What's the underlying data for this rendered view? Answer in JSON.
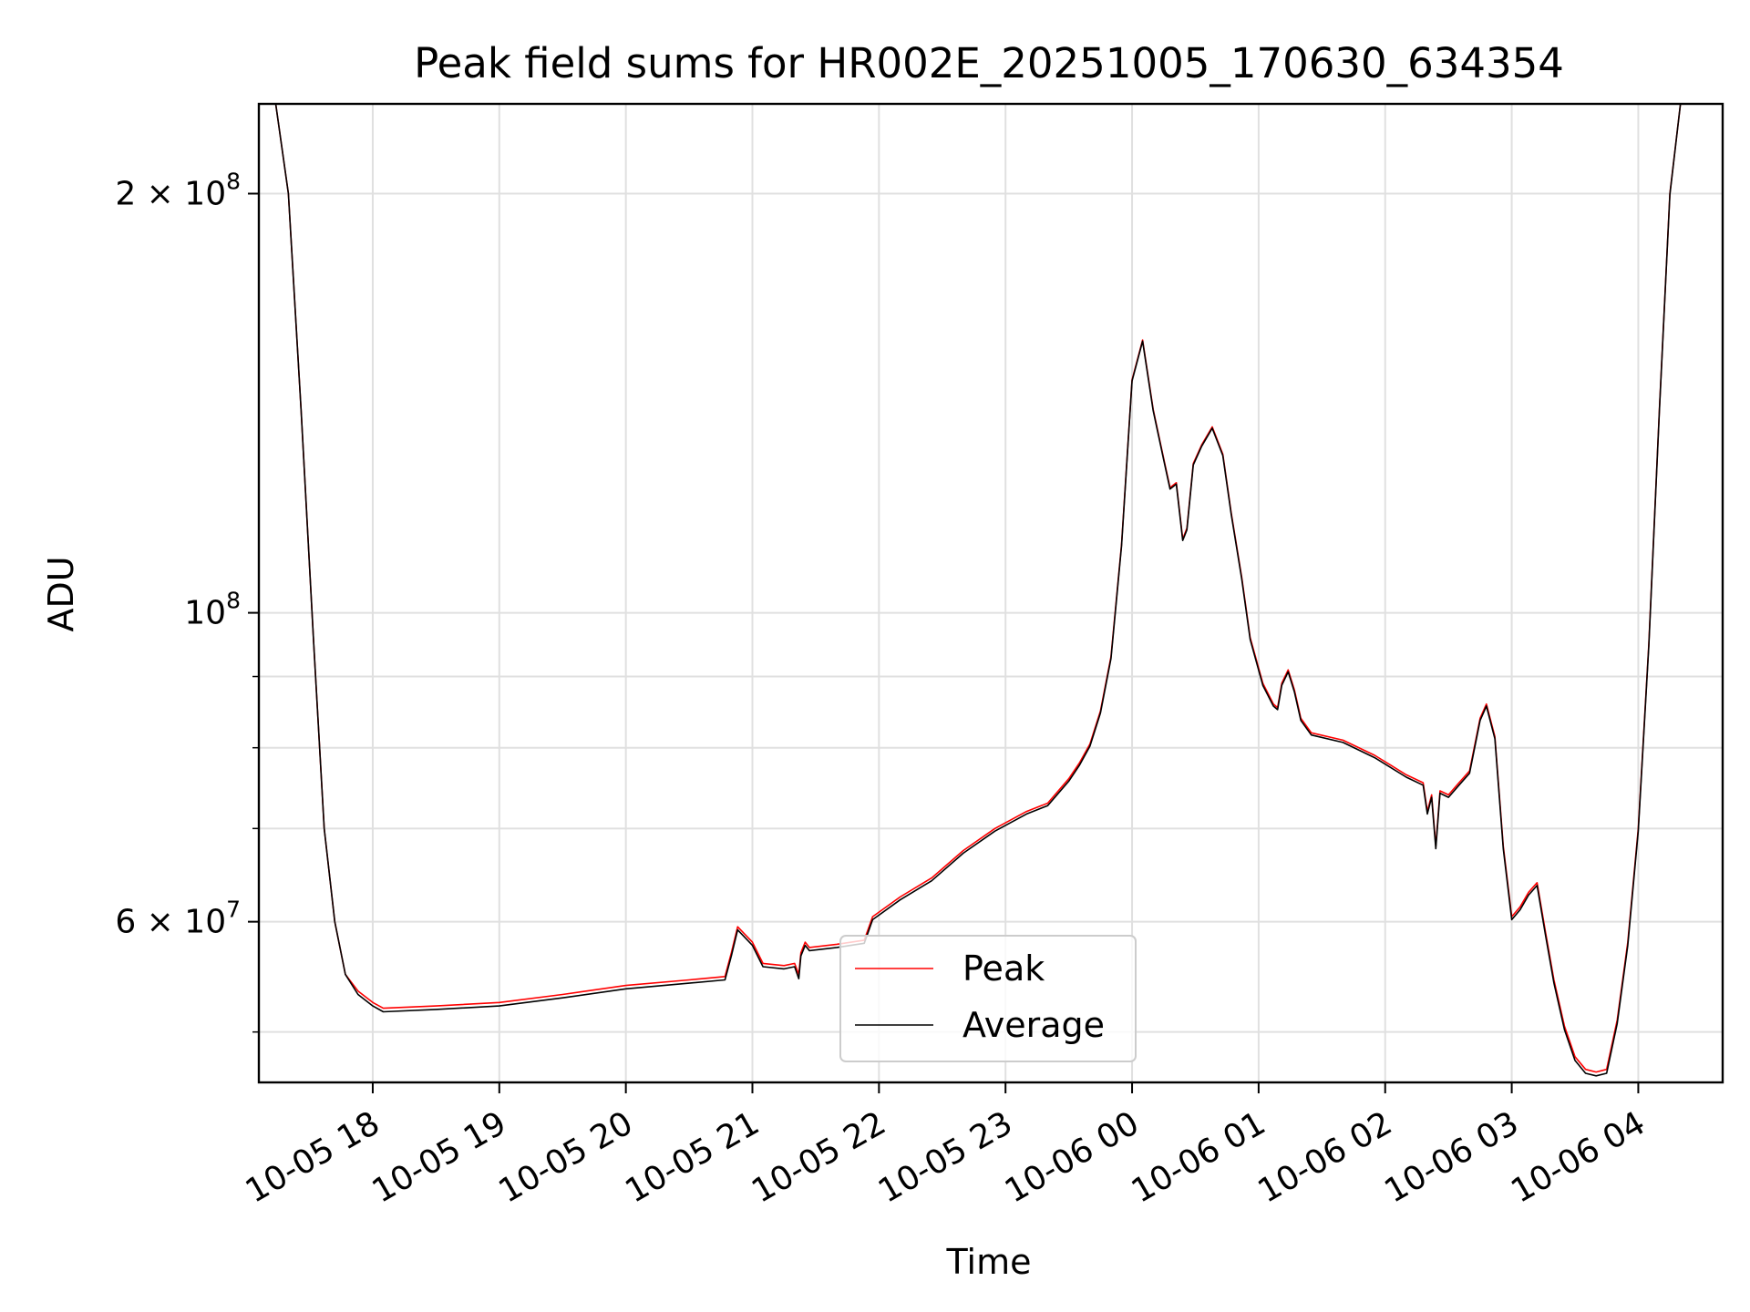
{
  "chart_data": {
    "type": "line",
    "title": "Peak field sums for HR002E_20251005_170630_634354",
    "xlabel": "Time",
    "ylabel": "ADU",
    "yscale": "log",
    "xlim": [
      "2025-10-05 17:06",
      "2025-10-06 04:40"
    ],
    "ylim": [
      46000000,
      232000000
    ],
    "grid": true,
    "legend_position": "lower center",
    "x_ticks": [
      {
        "time": "2025-10-05 18:00",
        "label": "10-05 18"
      },
      {
        "time": "2025-10-05 19:00",
        "label": "10-05 19"
      },
      {
        "time": "2025-10-05 20:00",
        "label": "10-05 20"
      },
      {
        "time": "2025-10-05 21:00",
        "label": "10-05 21"
      },
      {
        "time": "2025-10-05 22:00",
        "label": "10-05 22"
      },
      {
        "time": "2025-10-05 23:00",
        "label": "10-05 23"
      },
      {
        "time": "2025-10-06 00:00",
        "label": "10-06 00"
      },
      {
        "time": "2025-10-06 01:00",
        "label": "10-06 01"
      },
      {
        "time": "2025-10-06 02:00",
        "label": "10-06 02"
      },
      {
        "time": "2025-10-06 03:00",
        "label": "10-06 03"
      },
      {
        "time": "2025-10-06 04:00",
        "label": "10-06 04"
      }
    ],
    "y_major_ticks": [
      {
        "value": 200000000,
        "mantissa": "2 × 10",
        "exp": "8"
      },
      {
        "value": 100000000,
        "mantissa": "10",
        "exp": "8"
      },
      {
        "value": 60000000,
        "mantissa": "6 × 10",
        "exp": "7"
      }
    ],
    "y_minor_gridlines": [
      50000000,
      70000000,
      80000000,
      90000000
    ],
    "series": [
      {
        "name": "Peak",
        "color": "#ff0000",
        "x": [
          "2025-10-05 17:06",
          "2025-10-05 17:14",
          "2025-10-05 17:20",
          "2025-10-05 17:26",
          "2025-10-05 17:32",
          "2025-10-05 17:37",
          "2025-10-05 17:42",
          "2025-10-05 17:47",
          "2025-10-05 17:53",
          "2025-10-05 18:00",
          "2025-10-05 18:05",
          "2025-10-05 18:30",
          "2025-10-05 19:00",
          "2025-10-05 19:30",
          "2025-10-05 20:00",
          "2025-10-05 20:30",
          "2025-10-05 20:47",
          "2025-10-05 20:50",
          "2025-10-05 20:53",
          "2025-10-05 21:00",
          "2025-10-05 21:05",
          "2025-10-05 21:15",
          "2025-10-05 21:20",
          "2025-10-05 21:22",
          "2025-10-05 21:23",
          "2025-10-05 21:25",
          "2025-10-05 21:27",
          "2025-10-05 21:40",
          "2025-10-05 21:53",
          "2025-10-05 21:57",
          "2025-10-05 22:10",
          "2025-10-05 22:25",
          "2025-10-05 22:40",
          "2025-10-05 22:55",
          "2025-10-05 23:10",
          "2025-10-05 23:20",
          "2025-10-05 23:30",
          "2025-10-05 23:35",
          "2025-10-05 23:40",
          "2025-10-05 23:45",
          "2025-10-05 23:50",
          "2025-10-05 23:55",
          "2025-10-06 00:00",
          "2025-10-06 00:05",
          "2025-10-06 00:10",
          "2025-10-06 00:15",
          "2025-10-06 00:18",
          "2025-10-06 00:21",
          "2025-10-06 00:24",
          "2025-10-06 00:26",
          "2025-10-06 00:29",
          "2025-10-06 00:33",
          "2025-10-06 00:38",
          "2025-10-06 00:43",
          "2025-10-06 00:47",
          "2025-10-06 00:52",
          "2025-10-06 00:56",
          "2025-10-06 01:02",
          "2025-10-06 01:07",
          "2025-10-06 01:09",
          "2025-10-06 01:11",
          "2025-10-06 01:14",
          "2025-10-06 01:17",
          "2025-10-06 01:20",
          "2025-10-06 01:25",
          "2025-10-06 01:40",
          "2025-10-06 01:55",
          "2025-10-06 02:10",
          "2025-10-06 02:18",
          "2025-10-06 02:20",
          "2025-10-06 02:22",
          "2025-10-06 02:24",
          "2025-10-06 02:26",
          "2025-10-06 02:30",
          "2025-10-06 02:35",
          "2025-10-06 02:40",
          "2025-10-06 02:45",
          "2025-10-06 02:48",
          "2025-10-06 02:52",
          "2025-10-06 02:56",
          "2025-10-06 03:00",
          "2025-10-06 03:04",
          "2025-10-06 03:08",
          "2025-10-06 03:12",
          "2025-10-06 03:16",
          "2025-10-06 03:20",
          "2025-10-06 03:25",
          "2025-10-06 03:30",
          "2025-10-06 03:35",
          "2025-10-06 03:40",
          "2025-10-06 03:45",
          "2025-10-06 03:50",
          "2025-10-06 03:55",
          "2025-10-06 04:00",
          "2025-10-06 04:05",
          "2025-10-06 04:10",
          "2025-10-06 04:15",
          "2025-10-06 04:20",
          "2025-10-06 04:24",
          "2025-10-06 04:27",
          "2025-10-06 04:32",
          "2025-10-06 04:40"
        ],
        "y": [
          232000000,
          232000000,
          200000000,
          140000000,
          95000000,
          70000000,
          60000000,
          55000000,
          53500000,
          52500000,
          52000000,
          52200000,
          52500000,
          53200000,
          54000000,
          54500000,
          54800000,
          57000000,
          59500000,
          58000000,
          56000000,
          55800000,
          56000000,
          55000000,
          57000000,
          58000000,
          57500000,
          57800000,
          58200000,
          60500000,
          62500000,
          64500000,
          67500000,
          70000000,
          72000000,
          73000000,
          76000000,
          78000000,
          80500000,
          85000000,
          93000000,
          112000000,
          147000000,
          157000000,
          140000000,
          129000000,
          123000000,
          124000000,
          113000000,
          115000000,
          128000000,
          132000000,
          136000000,
          130000000,
          118000000,
          106000000,
          96000000,
          89000000,
          86000000,
          85500000,
          89000000,
          91000000,
          88000000,
          84000000,
          82000000,
          81000000,
          79000000,
          76500000,
          75500000,
          72000000,
          74000000,
          68000000,
          74500000,
          74000000,
          75500000,
          77000000,
          84000000,
          86000000,
          81500000,
          68000000,
          60500000,
          61500000,
          63000000,
          64000000,
          59000000,
          54500000,
          50500000,
          48000000,
          47000000,
          46800000,
          47000000,
          51000000,
          58000000,
          70000000,
          95000000,
          140000000,
          200000000,
          232000000,
          232000000,
          232000000,
          232000000,
          232000000
        ]
      },
      {
        "name": "Average",
        "color": "#000000",
        "x": [
          "2025-10-05 17:06",
          "2025-10-05 17:14",
          "2025-10-05 17:20",
          "2025-10-05 17:26",
          "2025-10-05 17:32",
          "2025-10-05 17:37",
          "2025-10-05 17:42",
          "2025-10-05 17:47",
          "2025-10-05 17:53",
          "2025-10-05 18:00",
          "2025-10-05 18:05",
          "2025-10-05 18:30",
          "2025-10-05 19:00",
          "2025-10-05 19:30",
          "2025-10-05 20:00",
          "2025-10-05 20:30",
          "2025-10-05 20:47",
          "2025-10-05 20:50",
          "2025-10-05 20:53",
          "2025-10-05 21:00",
          "2025-10-05 21:05",
          "2025-10-05 21:15",
          "2025-10-05 21:20",
          "2025-10-05 21:22",
          "2025-10-05 21:23",
          "2025-10-05 21:25",
          "2025-10-05 21:27",
          "2025-10-05 21:40",
          "2025-10-05 21:53",
          "2025-10-05 21:57",
          "2025-10-05 22:10",
          "2025-10-05 22:25",
          "2025-10-05 22:40",
          "2025-10-05 22:55",
          "2025-10-05 23:10",
          "2025-10-05 23:20",
          "2025-10-05 23:30",
          "2025-10-05 23:35",
          "2025-10-05 23:40",
          "2025-10-05 23:45",
          "2025-10-05 23:50",
          "2025-10-05 23:55",
          "2025-10-06 00:00",
          "2025-10-06 00:05",
          "2025-10-06 00:10",
          "2025-10-06 00:15",
          "2025-10-06 00:18",
          "2025-10-06 00:21",
          "2025-10-06 00:24",
          "2025-10-06 00:26",
          "2025-10-06 00:29",
          "2025-10-06 00:33",
          "2025-10-06 00:38",
          "2025-10-06 00:43",
          "2025-10-06 00:47",
          "2025-10-06 00:52",
          "2025-10-06 00:56",
          "2025-10-06 01:02",
          "2025-10-06 01:07",
          "2025-10-06 01:09",
          "2025-10-06 01:11",
          "2025-10-06 01:14",
          "2025-10-06 01:17",
          "2025-10-06 01:20",
          "2025-10-06 01:25",
          "2025-10-06 01:40",
          "2025-10-06 01:55",
          "2025-10-06 02:10",
          "2025-10-06 02:18",
          "2025-10-06 02:20",
          "2025-10-06 02:22",
          "2025-10-06 02:24",
          "2025-10-06 02:26",
          "2025-10-06 02:30",
          "2025-10-06 02:35",
          "2025-10-06 02:40",
          "2025-10-06 02:45",
          "2025-10-06 02:48",
          "2025-10-06 02:52",
          "2025-10-06 02:56",
          "2025-10-06 03:00",
          "2025-10-06 03:04",
          "2025-10-06 03:08",
          "2025-10-06 03:12",
          "2025-10-06 03:16",
          "2025-10-06 03:20",
          "2025-10-06 03:25",
          "2025-10-06 03:30",
          "2025-10-06 03:35",
          "2025-10-06 03:40",
          "2025-10-06 03:45",
          "2025-10-06 03:50",
          "2025-10-06 03:55",
          "2025-10-06 04:00",
          "2025-10-06 04:05",
          "2025-10-06 04:10",
          "2025-10-06 04:15",
          "2025-10-06 04:20",
          "2025-10-06 04:24",
          "2025-10-06 04:27",
          "2025-10-06 04:32",
          "2025-10-06 04:40"
        ],
        "y": [
          232000000,
          232000000,
          200000000,
          140000000,
          95000000,
          70000000,
          60000000,
          55000000,
          53200000,
          52200000,
          51700000,
          51900000,
          52200000,
          52900000,
          53700000,
          54200000,
          54500000,
          56700000,
          59200000,
          57700000,
          55700000,
          55500000,
          55700000,
          54600000,
          56700000,
          57700000,
          57200000,
          57500000,
          57900000,
          60200000,
          62200000,
          64200000,
          67200000,
          69700000,
          71700000,
          72700000,
          75700000,
          77700000,
          80200000,
          84700000,
          92700000,
          111700000,
          146700000,
          156700000,
          139700000,
          128700000,
          122700000,
          123700000,
          112700000,
          114700000,
          127700000,
          131700000,
          135700000,
          129700000,
          117700000,
          105700000,
          95700000,
          88700000,
          85700000,
          85200000,
          88700000,
          90700000,
          87700000,
          83700000,
          81700000,
          80700000,
          78700000,
          76200000,
          75200000,
          71700000,
          73700000,
          67700000,
          74200000,
          73700000,
          75200000,
          76700000,
          83700000,
          85700000,
          81200000,
          67700000,
          60200000,
          61200000,
          62700000,
          63700000,
          58700000,
          54200000,
          50200000,
          47700000,
          46700000,
          46500000,
          46700000,
          50700000,
          57700000,
          69700000,
          94700000,
          139700000,
          199700000,
          232000000,
          232000000,
          232000000,
          232000000,
          232000000
        ]
      }
    ]
  }
}
